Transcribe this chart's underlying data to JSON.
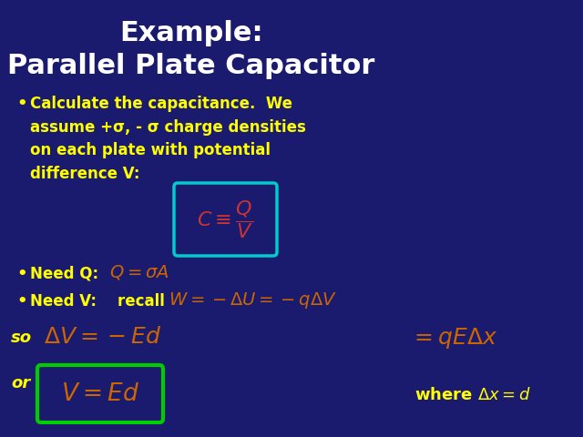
{
  "bg_color": "#1a1a6e",
  "title_line1": "Example:",
  "title_line2": "Parallel Plate Capacitor",
  "title_color": "#ffffff",
  "bullet_color": "#ffff00",
  "box1_color": "#00cccc",
  "box1_formula": "$C \\equiv \\dfrac{Q}{V}$",
  "box1_formula_color": "#cc3333",
  "formula_Q": "$Q = \\sigma A$",
  "formula_W": "$W = -\\Delta U = -q\\Delta V$",
  "formula_DV": "$\\Delta V = -Ed$",
  "formula_qEx": "$= qE\\Delta x$",
  "box2_color": "#00cc00",
  "box2_formula": "$V = Ed$",
  "box2_formula_color": "#cc6600",
  "where_text": "where $\\Delta x = d$",
  "orange": "#cc6600",
  "white": "#ffffff",
  "yellow": "#ffff00"
}
